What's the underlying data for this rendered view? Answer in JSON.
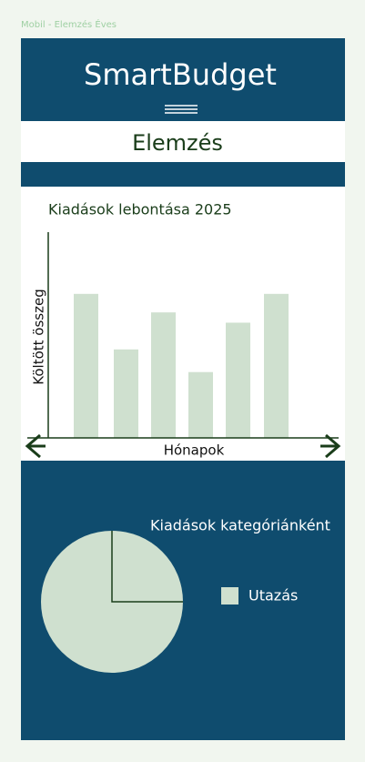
{
  "screen_label": "Mobil - Elemzés Éves",
  "header": {
    "title": "SmartBudget"
  },
  "section_title": "Elemzés",
  "bar_chart": {
    "type": "bar",
    "title": "Kiadások lebontása 2025",
    "y_label": "Költött összeg",
    "x_label": "Hónapok",
    "categories": [
      null,
      null,
      null,
      null,
      null,
      null
    ],
    "values": [
      70,
      43,
      61,
      32,
      56,
      70
    ],
    "color": "#cfe0cf",
    "ylim": [
      0,
      100
    ]
  },
  "pie_chart": {
    "type": "pie",
    "title": "Kiadások kategóriánként",
    "categories": [
      "Utazás"
    ],
    "values": [
      100
    ],
    "colors": [
      "#cfe0cf"
    ]
  }
}
